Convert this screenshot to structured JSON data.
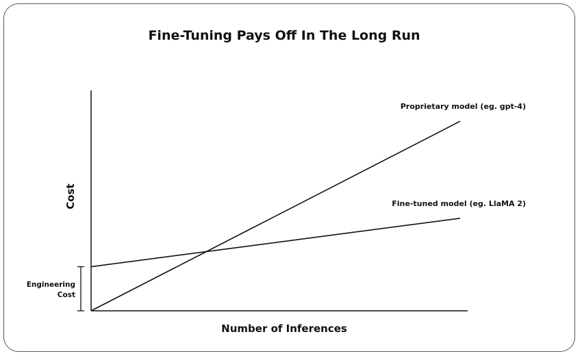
{
  "chart_data": {
    "type": "line",
    "title": "Fine-Tuning Pays Off In The Long Run",
    "xlabel": "Number of Inferences",
    "ylabel": "Cost",
    "xlim": [
      0,
      1
    ],
    "ylim": [
      0,
      1
    ],
    "grid": false,
    "series": [
      {
        "name": "Proprietary model (eg. gpt-4)",
        "x": [
          0,
          0.98
        ],
        "y": [
          0,
          0.86
        ],
        "color": "#111111"
      },
      {
        "name": "Fine-tuned model (eg. LlaMA 2)",
        "x": [
          0,
          0.98
        ],
        "y": [
          0.2,
          0.42
        ],
        "color": "#111111"
      }
    ],
    "annotations": [
      {
        "text_line1": "Engineering",
        "text_line2": "Cost",
        "y_from": 0,
        "y_to": 0.2
      }
    ]
  }
}
